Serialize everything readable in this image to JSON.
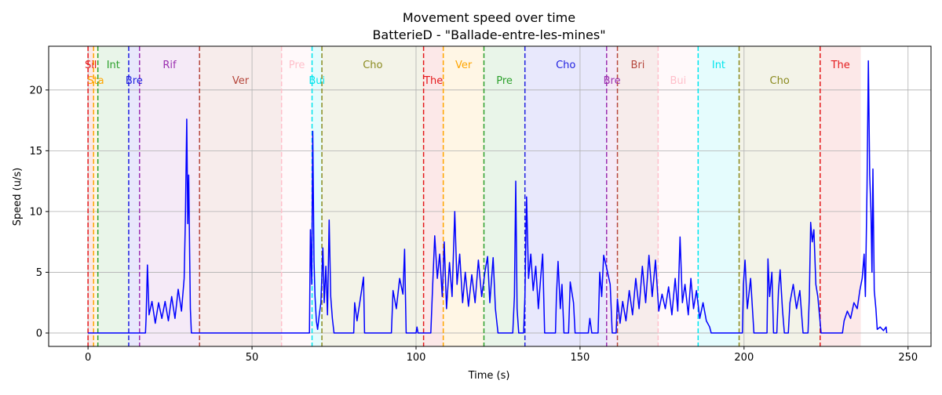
{
  "chart_data": {
    "type": "line",
    "title": "Movement speed over time",
    "subtitle": "BatterieD - \"Ballade-entre-les-mines\"",
    "xlabel": "Time (s)",
    "ylabel": "Speed (u/s)",
    "xlim": [
      -12,
      257
    ],
    "ylim": [
      -1.1,
      23.6
    ],
    "xticks": [
      0,
      50,
      100,
      150,
      200,
      250
    ],
    "yticks": [
      0,
      5,
      10,
      15,
      20
    ],
    "grid": true,
    "line_color": "#0000ff",
    "sections": [
      {
        "label": "Sil",
        "start": 0.0,
        "end": 1.7,
        "color": "#e41a1c",
        "row": 0
      },
      {
        "label": "Sta",
        "start": 1.7,
        "end": 3.0,
        "color": "#ffa500",
        "row": 1
      },
      {
        "label": "Int",
        "start": 3.0,
        "end": 12.4,
        "color": "#2ca02c",
        "row": 0
      },
      {
        "label": "Bre",
        "start": 12.4,
        "end": 15.7,
        "color": "#1f1fe0",
        "row": 1
      },
      {
        "label": "Rif",
        "start": 15.7,
        "end": 34.0,
        "color": "#9b30b0",
        "row": 0
      },
      {
        "label": "Ver",
        "start": 34.0,
        "end": 59.0,
        "color": "#b5473c",
        "row": 1
      },
      {
        "label": "Pre",
        "start": 59.0,
        "end": 68.3,
        "color": "#ffc0cb",
        "row": 0
      },
      {
        "label": "Bui",
        "start": 68.3,
        "end": 71.3,
        "color": "#00e5ee",
        "row": 1
      },
      {
        "label": "Cho",
        "start": 71.3,
        "end": 102.3,
        "color": "#8a8a1f",
        "row": 0
      },
      {
        "label": "The",
        "start": 102.3,
        "end": 108.3,
        "color": "#e41a1c",
        "row": 1
      },
      {
        "label": "Ver",
        "start": 108.3,
        "end": 120.7,
        "color": "#ffa500",
        "row": 0
      },
      {
        "label": "Pre",
        "start": 120.7,
        "end": 133.2,
        "color": "#2ca02c",
        "row": 1
      },
      {
        "label": "Cho",
        "start": 133.2,
        "end": 158.1,
        "color": "#1f1fe0",
        "row": 0
      },
      {
        "label": "Bre",
        "start": 158.1,
        "end": 161.4,
        "color": "#9b30b0",
        "row": 1
      },
      {
        "label": "Bri",
        "start": 161.4,
        "end": 173.8,
        "color": "#b5473c",
        "row": 0
      },
      {
        "label": "Bui",
        "start": 173.8,
        "end": 186.0,
        "color": "#ffc0cb",
        "row": 1
      },
      {
        "label": "Int",
        "start": 186.0,
        "end": 198.5,
        "color": "#00e5ee",
        "row": 0
      },
      {
        "label": "Cho",
        "start": 198.5,
        "end": 223.2,
        "color": "#8a8a1f",
        "row": 1
      },
      {
        "label": "The",
        "start": 223.2,
        "end": 235.6,
        "color": "#e41a1c",
        "row": 0
      }
    ],
    "series": [
      {
        "values": [
          [
            0,
            0
          ],
          [
            17.5,
            0
          ],
          [
            17.7,
            1.2
          ],
          [
            18.1,
            5.6
          ],
          [
            18.6,
            1.5
          ],
          [
            19.5,
            2.6
          ],
          [
            20.5,
            0.8
          ],
          [
            21.5,
            2.5
          ],
          [
            22.5,
            1.2
          ],
          [
            23.5,
            2.6
          ],
          [
            24.5,
            1.0
          ],
          [
            25.5,
            3.0
          ],
          [
            26.5,
            1.2
          ],
          [
            27.5,
            3.6
          ],
          [
            28.5,
            1.8
          ],
          [
            29.3,
            4.5
          ],
          [
            29.7,
            9.5
          ],
          [
            30.1,
            17.6
          ],
          [
            30.4,
            9.0
          ],
          [
            30.7,
            13.0
          ],
          [
            31.0,
            6.0
          ],
          [
            31.2,
            2.0
          ],
          [
            31.5,
            0
          ],
          [
            67.5,
            0
          ],
          [
            67.8,
            8.5
          ],
          [
            68.2,
            4.0
          ],
          [
            68.5,
            16.6
          ],
          [
            68.9,
            6.0
          ],
          [
            69.2,
            3.0
          ],
          [
            69.6,
            1.0
          ],
          [
            70.0,
            0.3
          ],
          [
            70.5,
            1.5
          ],
          [
            71.0,
            2.5
          ],
          [
            71.6,
            7.0
          ],
          [
            72.0,
            2.5
          ],
          [
            72.5,
            5.5
          ],
          [
            73.0,
            1.5
          ],
          [
            73.5,
            9.3
          ],
          [
            74.0,
            3.0
          ],
          [
            74.5,
            1.2
          ],
          [
            75.0,
            0
          ],
          [
            81.0,
            0
          ],
          [
            81.3,
            2.5
          ],
          [
            82.0,
            1.0
          ],
          [
            83.0,
            2.8
          ],
          [
            84.0,
            4.6
          ],
          [
            84.3,
            0
          ],
          [
            92.5,
            0
          ],
          [
            93.0,
            3.5
          ],
          [
            94.0,
            2.0
          ],
          [
            95.0,
            4.5
          ],
          [
            96.0,
            3.2
          ],
          [
            96.5,
            6.9
          ],
          [
            97.0,
            0
          ],
          [
            100.0,
            0
          ],
          [
            100.3,
            0.5
          ],
          [
            100.6,
            0
          ],
          [
            104.5,
            0
          ],
          [
            105.0,
            3.5
          ],
          [
            105.7,
            8.0
          ],
          [
            106.5,
            4.5
          ],
          [
            107.2,
            6.5
          ],
          [
            108.0,
            3.0
          ],
          [
            108.6,
            7.5
          ],
          [
            109.3,
            2.0
          ],
          [
            110.2,
            5.8
          ],
          [
            111.0,
            3.0
          ],
          [
            111.8,
            10.0
          ],
          [
            112.5,
            4.0
          ],
          [
            113.3,
            6.5
          ],
          [
            114.2,
            2.5
          ],
          [
            115.0,
            5.0
          ],
          [
            116.0,
            2.2
          ],
          [
            117.0,
            4.8
          ],
          [
            118.0,
            2.5
          ],
          [
            119.0,
            6.0
          ],
          [
            120.0,
            3.0
          ],
          [
            121.0,
            5.0
          ],
          [
            121.8,
            6.3
          ],
          [
            122.5,
            2.5
          ],
          [
            123.5,
            6.2
          ],
          [
            124.2,
            2.0
          ],
          [
            125.0,
            0
          ],
          [
            129.5,
            0
          ],
          [
            130.0,
            3.0
          ],
          [
            130.4,
            12.5
          ],
          [
            130.8,
            2.0
          ],
          [
            131.3,
            0
          ],
          [
            132.8,
            0
          ],
          [
            133.2,
            3.0
          ],
          [
            133.7,
            11.2
          ],
          [
            134.3,
            4.5
          ],
          [
            135.0,
            6.5
          ],
          [
            135.7,
            3.5
          ],
          [
            136.5,
            5.5
          ],
          [
            137.3,
            2.0
          ],
          [
            138.0,
            4.6
          ],
          [
            138.6,
            6.5
          ],
          [
            139.2,
            0
          ],
          [
            142.5,
            0
          ],
          [
            142.8,
            3.0
          ],
          [
            143.3,
            5.9
          ],
          [
            144.0,
            2.0
          ],
          [
            144.5,
            4.0
          ],
          [
            145.1,
            0
          ],
          [
            146.5,
            0
          ],
          [
            147.0,
            4.2
          ],
          [
            148.0,
            2.5
          ],
          [
            148.5,
            0
          ],
          [
            152.5,
            0
          ],
          [
            153.0,
            1.2
          ],
          [
            153.6,
            0
          ],
          [
            155.5,
            0
          ],
          [
            156.0,
            5.0
          ],
          [
            156.6,
            3.0
          ],
          [
            157.2,
            6.4
          ],
          [
            158.0,
            5.5
          ],
          [
            159.2,
            4.0
          ],
          [
            159.8,
            0
          ],
          [
            161.0,
            0
          ],
          [
            161.4,
            2.8
          ],
          [
            162.2,
            0.8
          ],
          [
            163.0,
            2.6
          ],
          [
            164.0,
            1.0
          ],
          [
            165.0,
            3.5
          ],
          [
            166.0,
            1.5
          ],
          [
            167.0,
            4.5
          ],
          [
            168.0,
            2.0
          ],
          [
            169.0,
            5.5
          ],
          [
            170.0,
            2.5
          ],
          [
            171.0,
            6.4
          ],
          [
            172.0,
            3.0
          ],
          [
            173.0,
            6.0
          ],
          [
            174.0,
            1.8
          ],
          [
            175.0,
            3.2
          ],
          [
            176.0,
            2.0
          ],
          [
            177.0,
            3.8
          ],
          [
            178.0,
            1.5
          ],
          [
            179.0,
            4.5
          ],
          [
            179.8,
            1.8
          ],
          [
            180.5,
            7.9
          ],
          [
            181.2,
            2.5
          ],
          [
            182.0,
            4.0
          ],
          [
            183.0,
            1.5
          ],
          [
            183.8,
            4.5
          ],
          [
            184.6,
            2.0
          ],
          [
            185.5,
            3.5
          ],
          [
            186.5,
            1.2
          ],
          [
            187.5,
            2.5
          ],
          [
            188.5,
            1.0
          ],
          [
            189.5,
            0.5
          ],
          [
            190.0,
            0
          ],
          [
            199.5,
            0
          ],
          [
            199.8,
            4.0
          ],
          [
            200.3,
            6.0
          ],
          [
            201.0,
            2.0
          ],
          [
            202.0,
            4.5
          ],
          [
            203.0,
            0
          ],
          [
            207.0,
            0
          ],
          [
            207.3,
            6.1
          ],
          [
            207.8,
            3.0
          ],
          [
            208.5,
            5.0
          ],
          [
            209.0,
            0
          ],
          [
            210.0,
            0
          ],
          [
            210.5,
            3.5
          ],
          [
            211.0,
            5.2
          ],
          [
            211.7,
            2.0
          ],
          [
            212.3,
            0
          ],
          [
            213.5,
            0
          ],
          [
            214.0,
            2.5
          ],
          [
            215.0,
            4.0
          ],
          [
            216.0,
            2.0
          ],
          [
            217.0,
            3.5
          ],
          [
            218.0,
            0
          ],
          [
            219.5,
            0
          ],
          [
            219.9,
            3.0
          ],
          [
            220.3,
            9.1
          ],
          [
            220.8,
            7.5
          ],
          [
            221.3,
            8.5
          ],
          [
            221.9,
            4.0
          ],
          [
            222.5,
            3.0
          ],
          [
            223.0,
            1.5
          ],
          [
            223.5,
            0
          ],
          [
            230.0,
            0
          ],
          [
            230.5,
            1.0
          ],
          [
            231.5,
            1.8
          ],
          [
            232.5,
            1.2
          ],
          [
            233.5,
            2.5
          ],
          [
            234.5,
            2.0
          ],
          [
            235.3,
            3.5
          ],
          [
            236.0,
            4.5
          ],
          [
            236.6,
            6.5
          ],
          [
            237.0,
            3.0
          ],
          [
            237.5,
            12.0
          ],
          [
            237.9,
            22.4
          ],
          [
            238.3,
            13.0
          ],
          [
            238.7,
            10.0
          ],
          [
            239.0,
            5.0
          ],
          [
            239.3,
            13.5
          ],
          [
            239.7,
            3.5
          ],
          [
            240.2,
            2.0
          ],
          [
            240.6,
            0.3
          ],
          [
            241.5,
            0.5
          ],
          [
            242.5,
            0.2
          ],
          [
            243.3,
            0.5
          ],
          [
            243.5,
            0
          ]
        ]
      }
    ]
  }
}
